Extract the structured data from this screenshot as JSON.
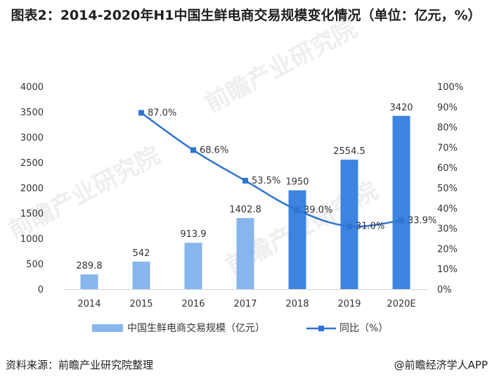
{
  "title": "图表2：2014-2020年H1中国生鲜电商交易规模变化情况（单位：亿元，%）",
  "source": "资料来源：前瞻产业研究院整理",
  "brand": "@前瞻经济学人APP",
  "watermark": "前瞻产业研究院",
  "colors": {
    "bar_light": "#87b6ec",
    "bar_dark": "#3c84df",
    "line": "#2f74d0"
  },
  "chart_data": {
    "type": "bar",
    "categories": [
      "2014",
      "2015",
      "2016",
      "2017",
      "2018",
      "2019",
      "2020E"
    ],
    "series": [
      {
        "name": "中国生鲜电商交易规模（亿元）",
        "type": "bar",
        "axis": "left",
        "values": [
          289.8,
          542,
          913.9,
          1402.8,
          1950,
          2554.5,
          3420
        ],
        "labels": [
          "289.8",
          "542",
          "913.9",
          "1402.8",
          "1950",
          "2554.5",
          "3420"
        ]
      },
      {
        "name": "同比（%）",
        "type": "line",
        "axis": "right",
        "values": [
          null,
          87.0,
          68.6,
          53.5,
          39.0,
          31.0,
          33.9
        ],
        "labels": [
          null,
          "87.0%",
          "68.6%",
          "53.5%",
          "39.0%",
          "31.0%",
          "33.9%"
        ]
      }
    ],
    "y_left": {
      "min": 0,
      "max": 4000,
      "step": 500,
      "ticks": [
        "0",
        "500",
        "1000",
        "1500",
        "2000",
        "2500",
        "3000",
        "3500",
        "4000"
      ]
    },
    "y_right": {
      "min": 0,
      "max": 100,
      "step": 10,
      "ticks": [
        "0%",
        "10%",
        "20%",
        "30%",
        "40%",
        "50%",
        "60%",
        "70%",
        "80%",
        "90%",
        "100%"
      ]
    },
    "legend_position": "bottom",
    "grid": false
  }
}
